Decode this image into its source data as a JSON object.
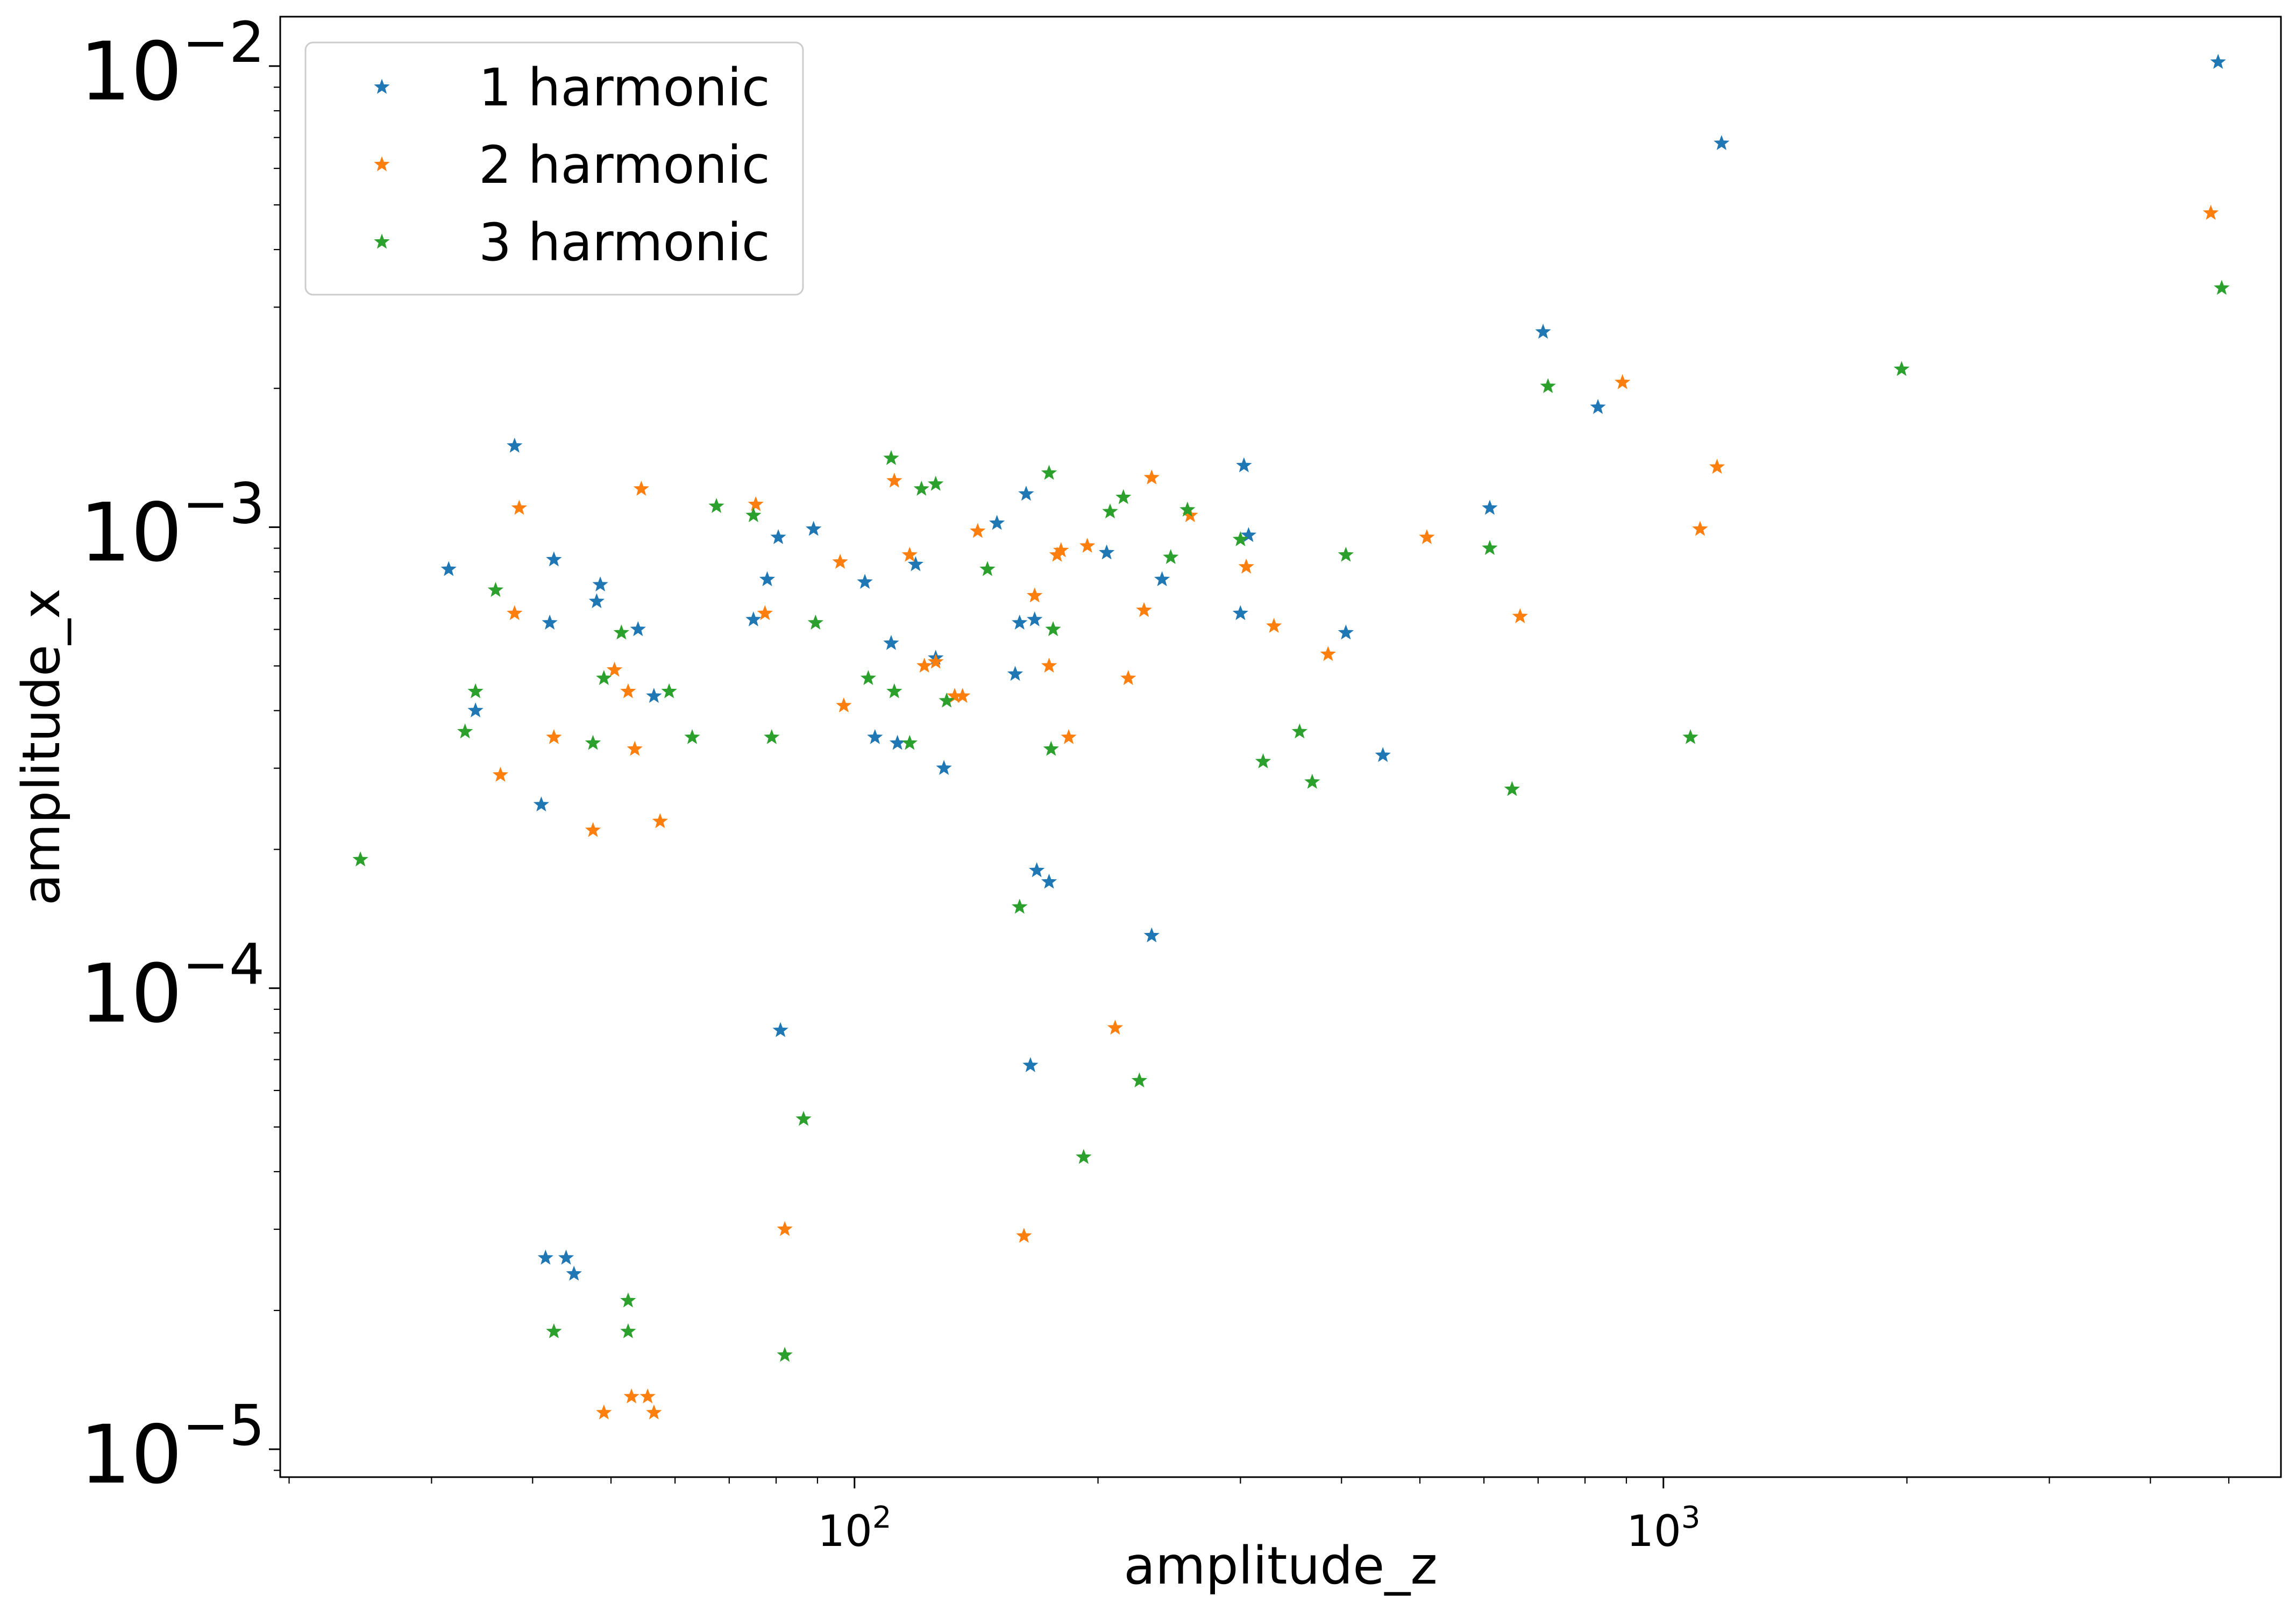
{
  "chart_data": {
    "type": "scatter",
    "title": "",
    "xlabel": "amplitude_z",
    "ylabel": "amplitude_x",
    "x_scale": "log",
    "y_scale": "log",
    "xlim": [
      19.5,
      5800
    ],
    "ylim": [
      8.7e-06,
      0.0128
    ],
    "x_ticks": [
      {
        "value": 100,
        "base": "10",
        "exp": "2"
      },
      {
        "value": 1000,
        "base": "10",
        "exp": "3"
      }
    ],
    "y_ticks": [
      {
        "value": 0.01,
        "base": "10",
        "exp": "−2"
      },
      {
        "value": 0.001,
        "base": "10",
        "exp": "−3"
      },
      {
        "value": 0.0001,
        "base": "10",
        "exp": "−4"
      },
      {
        "value": 1e-05,
        "base": "10",
        "exp": "−5"
      }
    ],
    "grid": false,
    "legend_position": "top-left",
    "marker": "star",
    "series": [
      {
        "name": "1 harmonic",
        "color": "#1f77b4",
        "points": [
          [
            31.5,
            0.00081
          ],
          [
            34.0,
            0.0004
          ],
          [
            38.0,
            0.0015
          ],
          [
            41.0,
            0.00025
          ],
          [
            41.5,
            2.6e-05
          ],
          [
            42.0,
            0.00062
          ],
          [
            42.5,
            0.00085
          ],
          [
            44.0,
            2.6e-05
          ],
          [
            45.0,
            2.4e-05
          ],
          [
            48.0,
            0.00069
          ],
          [
            48.5,
            0.00075
          ],
          [
            54.0,
            0.0006
          ],
          [
            56.5,
            0.00043
          ],
          [
            75.0,
            0.00063
          ],
          [
            78.0,
            0.00077
          ],
          [
            80.5,
            0.00095
          ],
          [
            81.0,
            8.1e-05
          ],
          [
            89.0,
            0.00099
          ],
          [
            103.0,
            0.00076
          ],
          [
            106.0,
            0.00035
          ],
          [
            111.0,
            0.00056
          ],
          [
            113.0,
            0.00034
          ],
          [
            119.0,
            0.00083
          ],
          [
            126.0,
            0.00052
          ],
          [
            129.0,
            0.0003
          ],
          [
            150.0,
            0.00102
          ],
          [
            158.0,
            0.00048
          ],
          [
            160.0,
            0.00062
          ],
          [
            163.0,
            0.00118
          ],
          [
            165.0,
            6.8e-05
          ],
          [
            167.0,
            0.00063
          ],
          [
            168.0,
            0.00018
          ],
          [
            174.0,
            0.00017
          ],
          [
            205.0,
            0.00088
          ],
          [
            233.0,
            0.00013
          ],
          [
            240.0,
            0.00077
          ],
          [
            300.0,
            0.00065
          ],
          [
            303.0,
            0.00136
          ],
          [
            307.0,
            0.00096
          ],
          [
            405.0,
            0.00059
          ],
          [
            450.0,
            0.00032
          ],
          [
            610.0,
            0.0011
          ],
          [
            710.0,
            0.00265
          ],
          [
            830.0,
            0.00182
          ],
          [
            1180.0,
            0.0068
          ],
          [
            4850.0,
            0.0102
          ]
        ]
      },
      {
        "name": "2 harmonic",
        "color": "#ff7f0e",
        "points": [
          [
            36.5,
            0.00029
          ],
          [
            38.0,
            0.00065
          ],
          [
            38.5,
            0.0011
          ],
          [
            42.5,
            0.00035
          ],
          [
            47.5,
            0.00022
          ],
          [
            49.0,
            1.2e-05
          ],
          [
            50.5,
            0.00049
          ],
          [
            52.5,
            0.00044
          ],
          [
            53.0,
            1.3e-05
          ],
          [
            53.5,
            0.00033
          ],
          [
            54.5,
            0.00121
          ],
          [
            55.5,
            1.3e-05
          ],
          [
            56.5,
            1.2e-05
          ],
          [
            57.5,
            0.00023
          ],
          [
            75.5,
            0.00112
          ],
          [
            77.5,
            0.00065
          ],
          [
            82.0,
            3e-05
          ],
          [
            96.0,
            0.00084
          ],
          [
            97.0,
            0.00041
          ],
          [
            112.0,
            0.00126
          ],
          [
            117.0,
            0.00087
          ],
          [
            122.0,
            0.0005
          ],
          [
            126.0,
            0.00051
          ],
          [
            133.0,
            0.00043
          ],
          [
            136.0,
            0.00043
          ],
          [
            142.0,
            0.00098
          ],
          [
            162.0,
            2.9e-05
          ],
          [
            167.0,
            0.00071
          ],
          [
            174.0,
            0.0005
          ],
          [
            178.0,
            0.00087
          ],
          [
            180.0,
            0.00089
          ],
          [
            184.0,
            0.00035
          ],
          [
            194.0,
            0.00091
          ],
          [
            210.0,
            8.2e-05
          ],
          [
            218.0,
            0.00047
          ],
          [
            228.0,
            0.00066
          ],
          [
            233.0,
            0.00128
          ],
          [
            260.0,
            0.00106
          ],
          [
            305.0,
            0.00082
          ],
          [
            330.0,
            0.00061
          ],
          [
            385.0,
            0.00053
          ],
          [
            510.0,
            0.00095
          ],
          [
            665.0,
            0.00064
          ],
          [
            890.0,
            0.00206
          ],
          [
            1110.0,
            0.00099
          ],
          [
            1165.0,
            0.00135
          ],
          [
            4750.0,
            0.0048
          ]
        ]
      },
      {
        "name": "3 harmonic",
        "color": "#2ca02c",
        "points": [
          [
            24.5,
            0.00019
          ],
          [
            33.0,
            0.00036
          ],
          [
            34.0,
            0.00044
          ],
          [
            36.0,
            0.00073
          ],
          [
            42.5,
            1.8e-05
          ],
          [
            47.5,
            0.00034
          ],
          [
            49.0,
            0.00047
          ],
          [
            51.5,
            0.00059
          ],
          [
            52.5,
            2.1e-05
          ],
          [
            52.5,
            1.8e-05
          ],
          [
            59.0,
            0.00044
          ],
          [
            63.0,
            0.00035
          ],
          [
            67.5,
            0.00111
          ],
          [
            75.0,
            0.00106
          ],
          [
            79.0,
            0.00035
          ],
          [
            82.0,
            1.6e-05
          ],
          [
            86.5,
            5.2e-05
          ],
          [
            89.5,
            0.00062
          ],
          [
            104.0,
            0.00047
          ],
          [
            111.0,
            0.00141
          ],
          [
            112.0,
            0.00044
          ],
          [
            117.0,
            0.00034
          ],
          [
            121.0,
            0.00121
          ],
          [
            126.0,
            0.00124
          ],
          [
            130.0,
            0.00042
          ],
          [
            146.0,
            0.00081
          ],
          [
            160.0,
            0.00015
          ],
          [
            174.0,
            0.00131
          ],
          [
            175.0,
            0.00033
          ],
          [
            176.0,
            0.0006
          ],
          [
            192.0,
            4.3e-05
          ],
          [
            207.0,
            0.00108
          ],
          [
            215.0,
            0.00116
          ],
          [
            225.0,
            6.3e-05
          ],
          [
            246.0,
            0.00086
          ],
          [
            258.0,
            0.00109
          ],
          [
            300.0,
            0.00094
          ],
          [
            320.0,
            0.00031
          ],
          [
            355.0,
            0.00036
          ],
          [
            368.0,
            0.00028
          ],
          [
            405.0,
            0.00087
          ],
          [
            650.0,
            0.00027
          ],
          [
            610.0,
            0.0009
          ],
          [
            720.0,
            0.00202
          ],
          [
            1080.0,
            0.00035
          ],
          [
            1970.0,
            0.0022
          ],
          [
            4900.0,
            0.0033
          ]
        ]
      }
    ]
  }
}
